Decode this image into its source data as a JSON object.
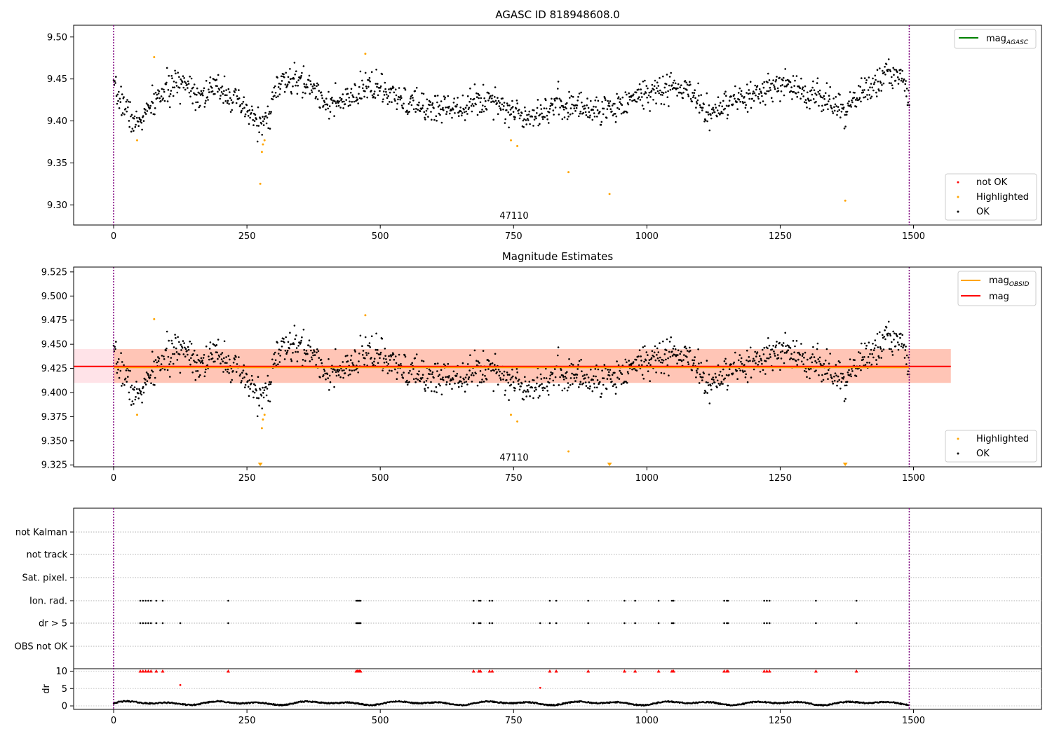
{
  "chart_data": [
    {
      "type": "scatter",
      "title": "AGASC ID 818948608.0",
      "annotation": "47110",
      "xticks": [
        0,
        250,
        500,
        750,
        1000,
        1250,
        1500
      ],
      "yticks": [
        9.3,
        9.35,
        9.4,
        9.45,
        9.5
      ],
      "xlim": [
        -75,
        1740
      ],
      "ylim": [
        9.276,
        9.514
      ],
      "legend_lines": [
        {
          "label": "mag",
          "sub": "AGASC",
          "color": "#008000"
        }
      ],
      "legend_points": [
        {
          "label": "not OK",
          "color": "#ff0000"
        },
        {
          "label": "Highlighted",
          "color": "#ffa500"
        },
        {
          "label": "OK",
          "color": "#000000"
        }
      ],
      "vlines": [
        0,
        1492
      ],
      "highlighted": [
        [
          44,
          9.377
        ],
        [
          76,
          9.476
        ],
        [
          275,
          9.325
        ],
        [
          278,
          9.363
        ],
        [
          280,
          9.372
        ],
        [
          283,
          9.377
        ],
        [
          472,
          9.48
        ],
        [
          745,
          9.377
        ],
        [
          757,
          9.37
        ],
        [
          853,
          9.339
        ],
        [
          930,
          9.313
        ],
        [
          1372,
          9.305
        ]
      ],
      "trend": [
        [
          0,
          9.436
        ],
        [
          20,
          9.42
        ],
        [
          40,
          9.395
        ],
        [
          60,
          9.408
        ],
        [
          85,
          9.43
        ],
        [
          110,
          9.44
        ],
        [
          135,
          9.448
        ],
        [
          160,
          9.43
        ],
        [
          185,
          9.437
        ],
        [
          205,
          9.44
        ],
        [
          225,
          9.425
        ],
        [
          250,
          9.41
        ],
        [
          270,
          9.4
        ],
        [
          285,
          9.395
        ],
        [
          305,
          9.44
        ],
        [
          330,
          9.448
        ],
        [
          355,
          9.445
        ],
        [
          375,
          9.44
        ],
        [
          395,
          9.425
        ],
        [
          415,
          9.418
        ],
        [
          440,
          9.425
        ],
        [
          460,
          9.43
        ],
        [
          480,
          9.445
        ],
        [
          505,
          9.435
        ],
        [
          530,
          9.425
        ],
        [
          560,
          9.42
        ],
        [
          600,
          9.415
        ],
        [
          640,
          9.418
        ],
        [
          680,
          9.422
        ],
        [
          715,
          9.428
        ],
        [
          740,
          9.412
        ],
        [
          770,
          9.408
        ],
        [
          800,
          9.41
        ],
        [
          830,
          9.42
        ],
        [
          860,
          9.418
        ],
        [
          890,
          9.415
        ],
        [
          920,
          9.412
        ],
        [
          950,
          9.42
        ],
        [
          980,
          9.43
        ],
        [
          1010,
          9.435
        ],
        [
          1050,
          9.44
        ],
        [
          1080,
          9.435
        ],
        [
          1100,
          9.42
        ],
        [
          1120,
          9.408
        ],
        [
          1150,
          9.418
        ],
        [
          1190,
          9.428
        ],
        [
          1225,
          9.435
        ],
        [
          1255,
          9.445
        ],
        [
          1290,
          9.435
        ],
        [
          1320,
          9.432
        ],
        [
          1345,
          9.42
        ],
        [
          1370,
          9.41
        ],
        [
          1395,
          9.43
        ],
        [
          1420,
          9.44
        ],
        [
          1450,
          9.455
        ],
        [
          1475,
          9.455
        ],
        [
          1492,
          9.43
        ]
      ],
      "ok_count": 1400,
      "ok_noise": 0.014
    },
    {
      "type": "scatter",
      "title": "Magnitude Estimates",
      "annotation": "47110",
      "xticks": [
        0,
        250,
        500,
        750,
        1000,
        1250,
        1500
      ],
      "yticks": [
        9.325,
        9.35,
        9.375,
        9.4,
        9.425,
        9.45,
        9.475,
        9.5,
        9.525
      ],
      "xlim": [
        -75,
        1740
      ],
      "ylim": [
        9.323,
        9.53
      ],
      "legend_lines": [
        {
          "label": "mag",
          "sub": "OBSID",
          "color": "#ffa500"
        },
        {
          "label": "mag",
          "sub": "",
          "color": "#ff0000"
        }
      ],
      "legend_points": [
        {
          "label": "Highlighted",
          "color": "#ffa500"
        },
        {
          "label": "OK",
          "color": "#000000"
        }
      ],
      "vlines": [
        0,
        1492
      ],
      "mag": 9.427,
      "mag_obsid": 9.426,
      "band_outer": [
        9.41,
        9.445
      ],
      "band_span": [
        -75,
        1570
      ],
      "band_inner_span": [
        0,
        1570
      ],
      "highlighted": [
        [
          44,
          9.377
        ],
        [
          76,
          9.476
        ],
        [
          278,
          9.363
        ],
        [
          280,
          9.372
        ],
        [
          283,
          9.377
        ],
        [
          472,
          9.48
        ],
        [
          745,
          9.377
        ],
        [
          757,
          9.37
        ],
        [
          853,
          9.339
        ]
      ],
      "offscale_markers": [
        275,
        930,
        1372
      ],
      "ok_count": 1400,
      "ok_noise": 0.014
    },
    {
      "type": "scatter",
      "categories": [
        "not Kalman",
        "not track",
        "Sat. pixel.",
        "Ion. rad.",
        "dr > 5",
        "OBS not OK"
      ],
      "flags": {
        "Ion. rad.": [
          50,
          55,
          60,
          65,
          70,
          80,
          92,
          215,
          455,
          457,
          459,
          461,
          463,
          675,
          685,
          688,
          705,
          710,
          818,
          830,
          890,
          958,
          978,
          1022,
          1047,
          1050,
          1145,
          1150,
          1152,
          1220,
          1225,
          1230,
          1317,
          1393
        ],
        "dr > 5": [
          50,
          55,
          60,
          65,
          70,
          80,
          92,
          125,
          215,
          455,
          457,
          459,
          461,
          463,
          675,
          685,
          688,
          705,
          710,
          800,
          818,
          830,
          890,
          958,
          978,
          1022,
          1047,
          1050,
          1145,
          1150,
          1152,
          1220,
          1225,
          1230,
          1317,
          1393
        ]
      },
      "dr_ylabel": "dr",
      "dr_yticks": [
        0,
        5,
        10
      ],
      "dr_ylim": [
        -1,
        10.5
      ],
      "dr_clipped": [
        50,
        55,
        60,
        65,
        70,
        80,
        92,
        215,
        455,
        457,
        459,
        461,
        463,
        675,
        685,
        688,
        705,
        710,
        818,
        830,
        890,
        958,
        978,
        1022,
        1047,
        1050,
        1145,
        1150,
        1152,
        1220,
        1225,
        1230,
        1317,
        1393
      ],
      "dr_outliers": [
        [
          125,
          6
        ],
        [
          800,
          5.2
        ]
      ],
      "dr_baseline_range": [
        0,
        1.6
      ],
      "xticks": [
        0,
        250,
        500,
        750,
        1000,
        1250,
        1500
      ],
      "xlim": [
        -75,
        1740
      ],
      "vlines": [
        0,
        1492
      ]
    }
  ]
}
